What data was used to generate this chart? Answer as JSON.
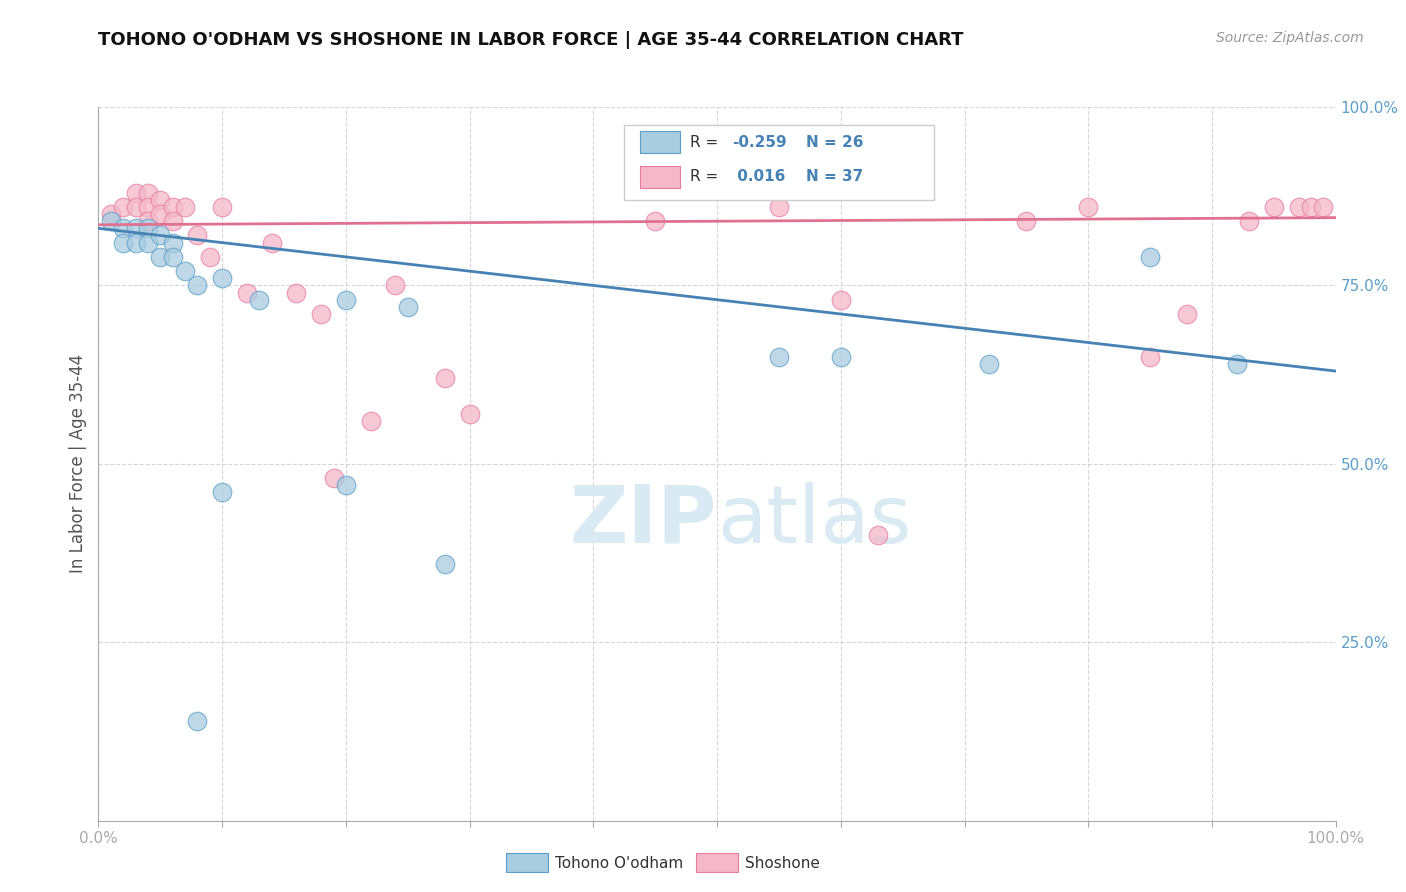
{
  "title": "TOHONO O'ODHAM VS SHOSHONE IN LABOR FORCE | AGE 35-44 CORRELATION CHART",
  "source": "Source: ZipAtlas.com",
  "ylabel": "In Labor Force | Age 35-44",
  "xlim": [
    0.0,
    1.0
  ],
  "ylim": [
    0.0,
    1.0
  ],
  "legend_r_blue": "-0.259",
  "legend_n_blue": "26",
  "legend_r_pink": "0.016",
  "legend_n_pink": "37",
  "blue_color": "#a8cce0",
  "pink_color": "#f4b8c8",
  "blue_edge": "#5b9ec9",
  "pink_edge": "#e87aa0",
  "line_blue": "#4682b4",
  "line_pink": "#e07090",
  "tick_color": "#5b9ec9",
  "watermark_color": "#daeaf5",
  "blue_scatter_x": [
    0.01,
    0.02,
    0.02,
    0.03,
    0.03,
    0.04,
    0.04,
    0.05,
    0.05,
    0.06,
    0.06,
    0.07,
    0.08,
    0.1,
    0.13,
    0.2,
    0.25,
    0.55,
    0.6,
    0.72,
    0.85,
    0.92,
    0.1,
    0.2,
    0.28,
    0.08
  ],
  "blue_scatter_y": [
    0.84,
    0.83,
    0.81,
    0.83,
    0.81,
    0.83,
    0.81,
    0.82,
    0.79,
    0.81,
    0.79,
    0.77,
    0.75,
    0.76,
    0.73,
    0.73,
    0.72,
    0.65,
    0.65,
    0.64,
    0.79,
    0.64,
    0.46,
    0.47,
    0.36,
    0.14
  ],
  "pink_scatter_x": [
    0.01,
    0.02,
    0.03,
    0.03,
    0.04,
    0.04,
    0.04,
    0.05,
    0.05,
    0.06,
    0.06,
    0.07,
    0.08,
    0.09,
    0.1,
    0.12,
    0.14,
    0.16,
    0.18,
    0.19,
    0.22,
    0.24,
    0.28,
    0.3,
    0.45,
    0.55,
    0.6,
    0.63,
    0.75,
    0.8,
    0.85,
    0.88,
    0.93,
    0.95,
    0.97,
    0.98,
    0.99
  ],
  "pink_scatter_y": [
    0.85,
    0.86,
    0.88,
    0.86,
    0.88,
    0.86,
    0.84,
    0.87,
    0.85,
    0.86,
    0.84,
    0.86,
    0.82,
    0.79,
    0.86,
    0.74,
    0.81,
    0.74,
    0.71,
    0.48,
    0.56,
    0.75,
    0.62,
    0.57,
    0.84,
    0.86,
    0.73,
    0.4,
    0.84,
    0.86,
    0.65,
    0.71,
    0.84,
    0.86,
    0.86,
    0.86,
    0.86
  ],
  "blue_line_x0": 0.0,
  "blue_line_x1": 1.0,
  "blue_line_y0": 0.83,
  "blue_line_y1": 0.63,
  "pink_line_x0": 0.0,
  "pink_line_x1": 1.0,
  "pink_line_y0": 0.835,
  "pink_line_y1": 0.845
}
